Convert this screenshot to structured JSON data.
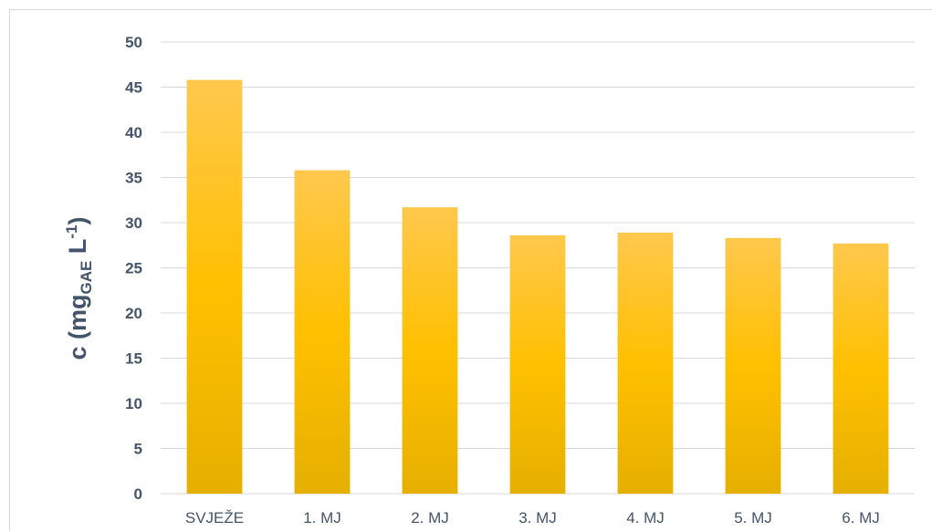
{
  "chart_data": {
    "type": "bar",
    "title": "",
    "xlabel": "",
    "ylabel": {
      "main": "c (mg",
      "subscript": "GAE",
      "unit": " L",
      "superscript": "-1",
      "close": ")"
    },
    "categories": [
      "SVJEŽE",
      "1. MJ",
      "2. MJ",
      "3. MJ",
      "4. MJ",
      "5. MJ",
      "6. MJ"
    ],
    "values": [
      45.8,
      35.8,
      31.7,
      28.6,
      28.9,
      28.3,
      27.7
    ],
    "ylim": [
      0,
      50
    ],
    "yticks": [
      0,
      5,
      10,
      15,
      20,
      25,
      30,
      35,
      40,
      45,
      50
    ],
    "grid": true,
    "legend": "none",
    "colors": {
      "bar_top": "#ffc84d",
      "bar_mid": "#ffc000",
      "bar_bottom": "#e6b000",
      "grid": "#d9d9d9",
      "text": "#44546a"
    }
  }
}
